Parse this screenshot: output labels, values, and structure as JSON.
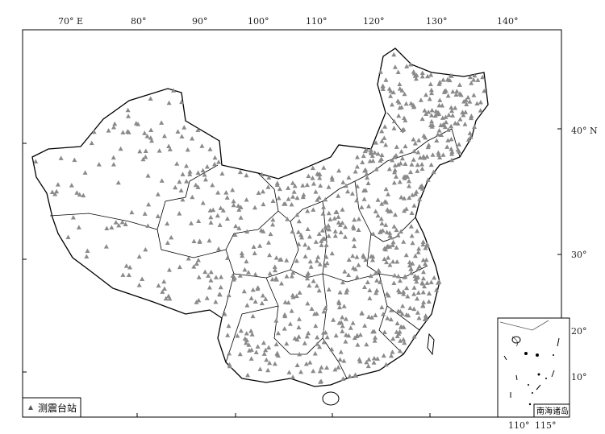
{
  "map": {
    "top_ticks": [
      "70° E",
      "80°",
      "90°",
      "100°",
      "110°",
      "120°",
      "130°",
      "140°"
    ],
    "right_ticks": [
      "40° N",
      "30°"
    ],
    "legend": {
      "symbol": "triangle",
      "label": "测震台站"
    },
    "inset": {
      "title": "南海诸岛",
      "right_ticks": [
        "20°",
        "10°"
      ],
      "bottom_ticks": [
        "110°",
        "115°"
      ]
    },
    "colors": {
      "station": "#8a8a8a",
      "boundary": "#000000"
    }
  }
}
